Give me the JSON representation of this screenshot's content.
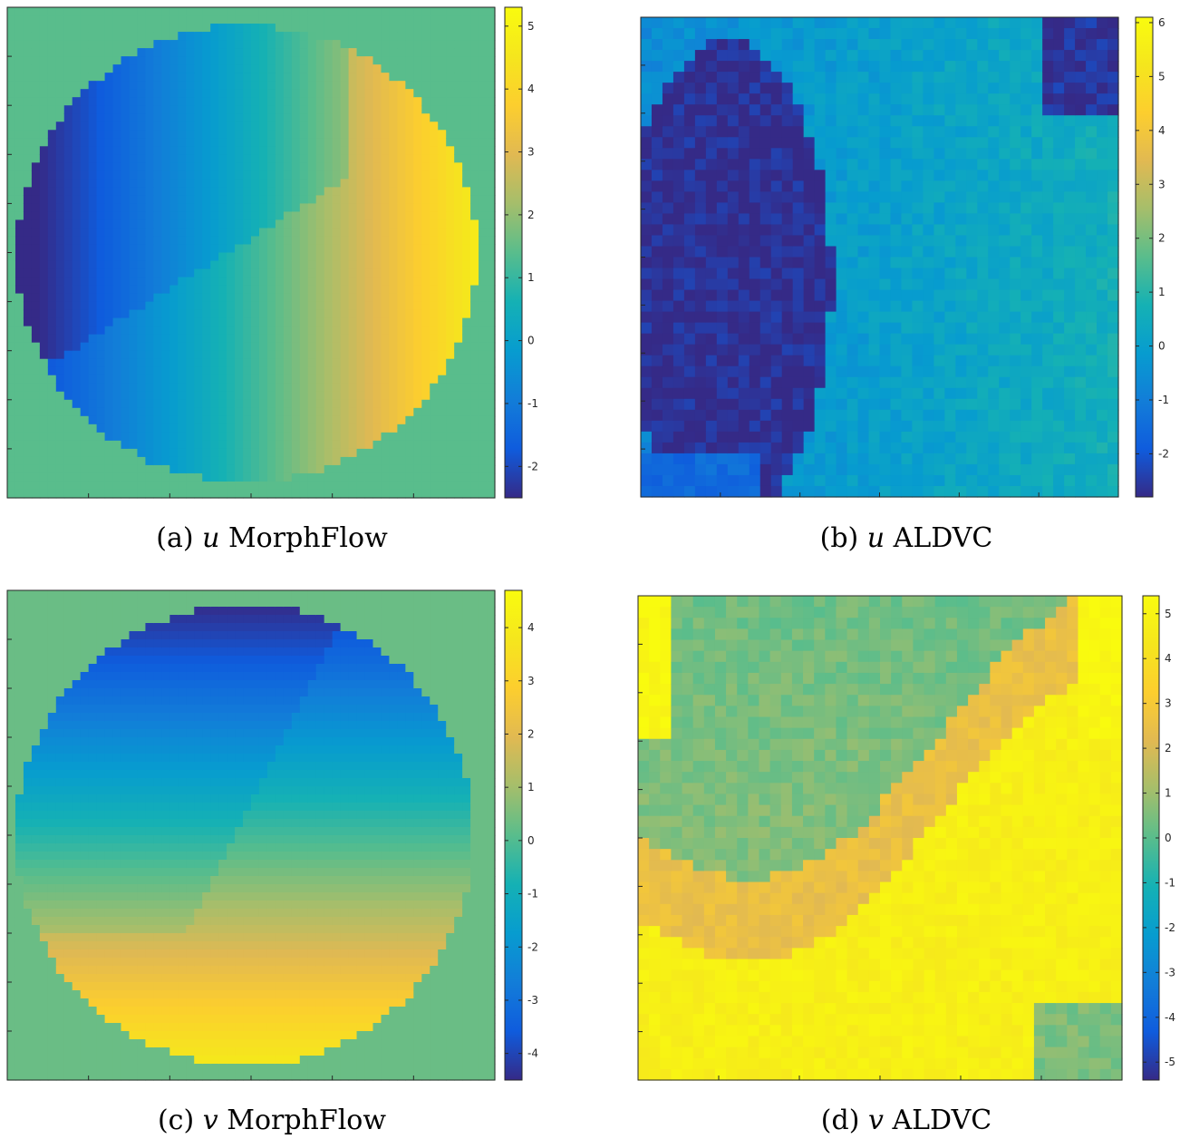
{
  "figure": {
    "panels": [
      {
        "id": "a",
        "letter": "(a)",
        "variable": "u",
        "method": "MorphFlow"
      },
      {
        "id": "b",
        "letter": "(b)",
        "variable": "u",
        "method": "ALDVC"
      },
      {
        "id": "c",
        "letter": "(c)",
        "variable": "v",
        "method": "MorphFlow"
      },
      {
        "id": "d",
        "letter": "(d)",
        "variable": "v",
        "method": "ALDVC"
      }
    ]
  },
  "chart_data": [
    {
      "type": "heatmap",
      "panel": "a",
      "title": "",
      "colormap": "parula",
      "pattern": "disk-smooth-u",
      "clim": [
        -2.5,
        5.3
      ],
      "colorbar_ticks": [
        -2,
        -1,
        0,
        1,
        2,
        3,
        4,
        5
      ],
      "colorbar_ticklabels": [
        "-2",
        "-1",
        "0",
        "1",
        "2",
        "3",
        "4",
        "5"
      ],
      "background_value": 1.4,
      "field_description_values": {
        "left_min": -2.3,
        "right_max": 5.1
      }
    },
    {
      "type": "heatmap",
      "panel": "b",
      "title": "",
      "colormap": "parula",
      "pattern": "blocky-u",
      "clim": [
        -2.8,
        6.1
      ],
      "colorbar_ticks": [
        -2,
        -1,
        0,
        1,
        2,
        3,
        4,
        5,
        6
      ],
      "colorbar_ticklabels": [
        "-2",
        "-1",
        "0",
        "1",
        "2",
        "3",
        "4",
        "5",
        "6"
      ]
    },
    {
      "type": "heatmap",
      "panel": "c",
      "title": "",
      "colormap": "parula",
      "pattern": "disk-smooth-v",
      "clim": [
        -4.5,
        4.7
      ],
      "colorbar_ticks": [
        -4,
        -3,
        -2,
        -1,
        0,
        1,
        2,
        3,
        4
      ],
      "colorbar_ticklabels": [
        "-4",
        "-3",
        "-2",
        "-1",
        "0",
        "1",
        "2",
        "3",
        "4"
      ],
      "background_value": 0.3
    },
    {
      "type": "heatmap",
      "panel": "d",
      "title": "",
      "colormap": "parula",
      "pattern": "blocky-v",
      "clim": [
        -5.4,
        5.4
      ],
      "colorbar_ticks": [
        -5,
        -4,
        -3,
        -2,
        -1,
        0,
        1,
        2,
        3,
        4,
        5
      ],
      "colorbar_ticklabels": [
        "-5",
        "-4",
        "-3",
        "-2",
        "-1",
        "0",
        "1",
        "2",
        "3",
        "4",
        "5"
      ]
    }
  ]
}
